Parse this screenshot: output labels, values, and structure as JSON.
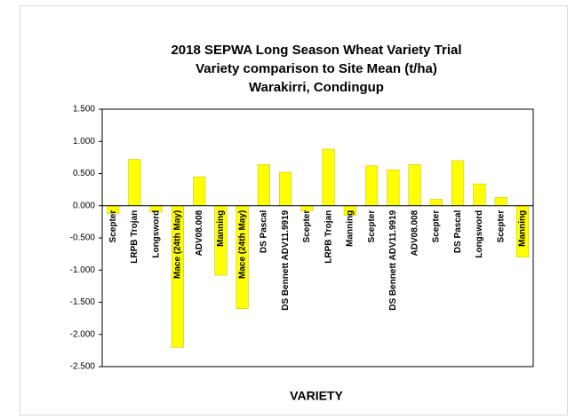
{
  "chart_data": {
    "type": "bar",
    "title": [
      "2018 SEPWA Long Season Wheat Variety Trial",
      "Variety comparison to Site Mean (t/ha)",
      "Warakirri, Condingup"
    ],
    "x_label": "VARIETY",
    "categories": [
      "Scepter",
      "LRPB Trojan",
      "Longsword",
      "Mace (24th May)",
      "ADV08.008",
      "Manning",
      "Mace (24th May)",
      "DS Pascal",
      "DS Bennett ADV11.9919",
      "Scepter",
      "LRPB Trojan",
      "Manning",
      "Scepter",
      "DS Bennett ADV11.9919",
      "ADV08.008",
      "Scepter",
      "DS Pascal",
      "Longsword",
      "Scepter",
      "Manning"
    ],
    "values": [
      -0.12,
      0.72,
      -0.1,
      -2.2,
      0.45,
      -1.08,
      -1.6,
      0.64,
      0.52,
      -0.08,
      0.88,
      -0.15,
      0.62,
      0.56,
      0.64,
      0.1,
      0.7,
      0.34,
      0.13,
      -0.8
    ],
    "color": "#ffff00",
    "ylim": [
      -2.5,
      1.5
    ],
    "yticks": [
      {
        "value": -2.5,
        "label": "-2.500"
      },
      {
        "value": -2,
        "label": "-2.000"
      },
      {
        "value": -1.5,
        "label": "-1.500"
      },
      {
        "value": -1,
        "label": "-1.000"
      },
      {
        "value": -0.5,
        "label": "-0.500"
      },
      {
        "value": 0,
        "label": "0.000"
      },
      {
        "value": 0.5,
        "label": "0.500"
      },
      {
        "value": 1,
        "label": "1.000"
      },
      {
        "value": 1.5,
        "label": "1.500"
      }
    ],
    "grid": false
  }
}
